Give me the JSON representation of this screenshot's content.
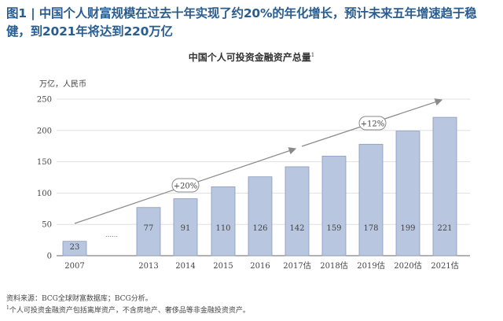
{
  "headline": "图1 |  中国个人财富规模在过去十年实现了约20%的年化增长，预计未来五年增速趋于稳健，到2021年将达到220万亿",
  "chart_title": "中国个人可投资金融资产总量",
  "chart_title_sup": "1",
  "unit_label": "万亿，人民币",
  "gap_marker": "……",
  "footnotes": {
    "source": "资料来源：BCG全球财富数据库；BCG分析。",
    "note_marker": "1",
    "note": "个人可投资金融资产包括离岸资产，不含房地产、奢侈品等非金融投资资产。"
  },
  "chart_data": {
    "type": "bar",
    "title": "中国个人可投资金融资产总量",
    "ylabel": "万亿，人民币",
    "xlabel": "",
    "ylim": [
      0,
      250
    ],
    "yticks": [
      0,
      50,
      100,
      150,
      200,
      250
    ],
    "grid": true,
    "categories": [
      "2007",
      "2013",
      "2014",
      "2015",
      "2016",
      "2017估",
      "2018估",
      "2019估",
      "2020估",
      "2021估"
    ],
    "values": [
      23,
      77,
      91,
      110,
      126,
      142,
      159,
      178,
      199,
      221
    ],
    "bar_color": "#b9c6e0",
    "bar_edge_color": "#8a9ac0",
    "annotations": [
      {
        "text": "+20%",
        "near_category": "2014"
      },
      {
        "text": "+12%",
        "near_category": "2019估"
      }
    ]
  }
}
